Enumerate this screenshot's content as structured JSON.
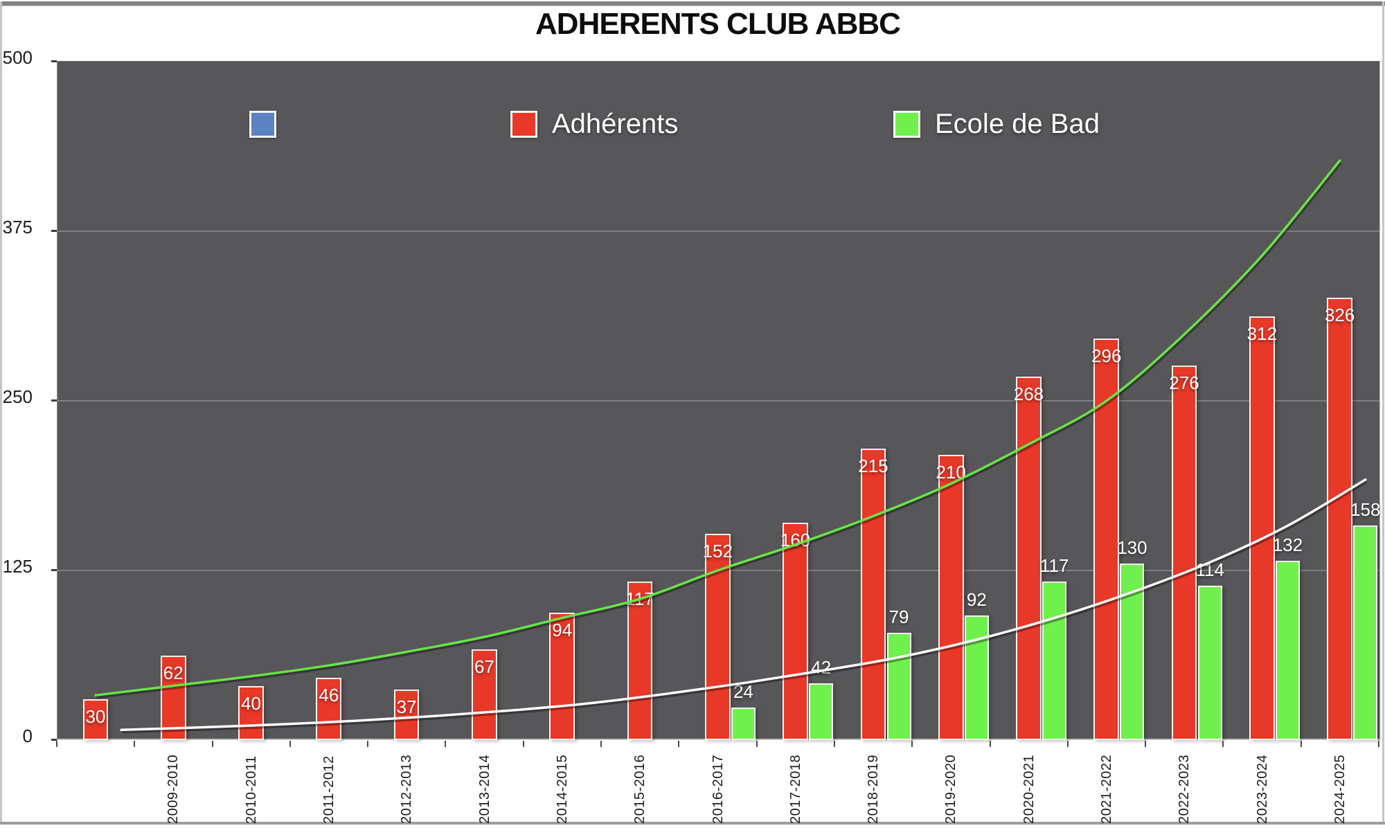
{
  "title": "ADHERENTS CLUB ABBC",
  "legend": [
    {
      "label": "",
      "color": "#5b83c4"
    },
    {
      "label": "Adhérents",
      "color": "#e83828"
    },
    {
      "label": "Ecole de Bad",
      "color": "#6ff04d"
    }
  ],
  "y_axis": {
    "ticks": [
      500,
      375,
      250,
      125,
      0
    ]
  },
  "chart_data": {
    "type": "bar",
    "title": "ADHERENTS CLUB ABBC",
    "categories": [
      "",
      "2009-2010",
      "2010-2011",
      "2011-2012",
      "2012-2013",
      "2013-2014",
      "2014-2015",
      "2015-2016",
      "2016-2017",
      "2017-2018",
      "2018-2019",
      "2019-2020",
      "2020-2021",
      "2021-2022",
      "2022-2023",
      "2023-2024",
      "2024-2025"
    ],
    "series": [
      {
        "name": "",
        "color": "#5b83c4",
        "values": [
          null,
          null,
          null,
          null,
          null,
          null,
          null,
          null,
          null,
          null,
          null,
          null,
          null,
          null,
          null,
          null,
          null
        ]
      },
      {
        "name": "Adhérents",
        "color": "#e83828",
        "values": [
          30,
          62,
          40,
          46,
          37,
          67,
          94,
          117,
          152,
          160,
          215,
          210,
          268,
          296,
          276,
          312,
          326
        ]
      },
      {
        "name": "Ecole de Bad",
        "color": "#6ff04d",
        "values": [
          null,
          null,
          null,
          null,
          null,
          null,
          null,
          null,
          24,
          42,
          79,
          92,
          117,
          130,
          114,
          132,
          158
        ]
      }
    ],
    "trendlines": [
      {
        "for": "Adhérents",
        "color": "#68e546",
        "values": [
          33,
          40,
          47,
          55,
          65,
          76,
          90,
          104,
          125,
          144,
          165,
          189,
          218,
          250,
          299,
          357,
          427
        ]
      },
      {
        "for": "Ecole de Bad",
        "color": "#ffffff",
        "values": [
          7.5,
          9.3,
          11.5,
          14.2,
          17.6,
          21.8,
          27,
          34,
          42,
          51,
          61,
          74,
          90,
          109,
          131,
          158,
          192
        ]
      }
    ],
    "ylim": [
      0,
      500
    ],
    "grid": true,
    "gridline_values": [
      125,
      250,
      375
    ],
    "legend_position": "top-inside",
    "plot_background": "#575659"
  }
}
